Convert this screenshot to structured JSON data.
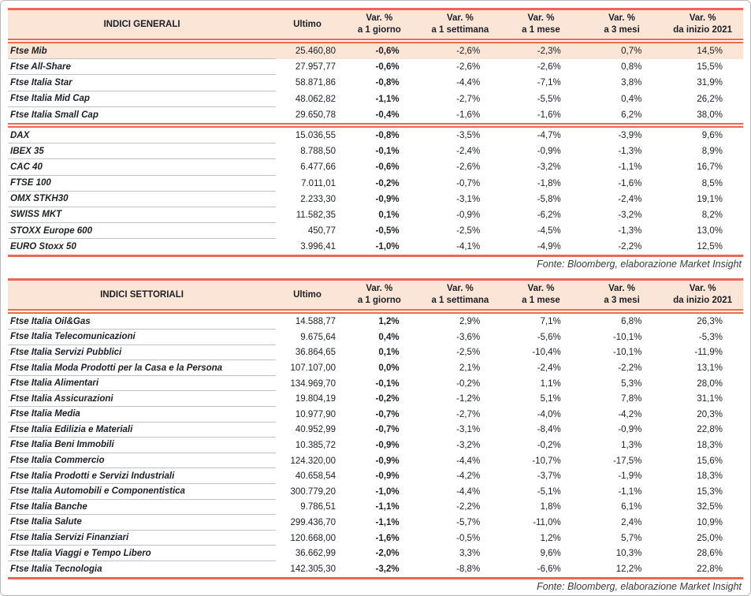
{
  "colors": {
    "salmon": "#ED6852",
    "peach": "#FBE5D6",
    "grayline": "#C3C3C3",
    "text": "#1D2026",
    "fonte": "#3B3B3B"
  },
  "tables": [
    {
      "title": "INDICI GENERALI",
      "header": {
        "ultimo": "Ultimo",
        "var_label": "Var. %",
        "periods": [
          "a 1 giorno",
          "a 1 settimana",
          "a 1 mese",
          "a 3 mesi",
          "da inizio 2021"
        ]
      },
      "fonte": "Fonte: Bloomberg, elaborazione Market Insight",
      "rows": [
        {
          "name": "Ftse Mib",
          "ultimo": "25.460,80",
          "vars": [
            "-0,6%",
            "-2,6%",
            "-2,3%",
            "0,7%",
            "14,5%"
          ],
          "highlight": true
        },
        {
          "name": "Ftse All-Share",
          "ultimo": "27.957,77",
          "vars": [
            "-0,6%",
            "-2,6%",
            "-2,6%",
            "0,8%",
            "15,5%"
          ]
        },
        {
          "name": "Ftse Italia Star",
          "ultimo": "58.871,86",
          "vars": [
            "-0,8%",
            "-4,4%",
            "-7,1%",
            "3,8%",
            "31,9%"
          ]
        },
        {
          "name": "Ftse Italia Mid Cap",
          "ultimo": "48.062,82",
          "vars": [
            "-1,1%",
            "-2,7%",
            "-5,5%",
            "0,4%",
            "26,2%"
          ]
        },
        {
          "name": "Ftse Italia Small Cap",
          "ultimo": "29.650,78",
          "vars": [
            "-0,4%",
            "-1,6%",
            "-1,6%",
            "6,2%",
            "38,0%"
          ],
          "divider_after": true
        },
        {
          "name": "DAX",
          "ultimo": "15.036,55",
          "vars": [
            "-0,8%",
            "-3,5%",
            "-4,7%",
            "-3,9%",
            "9,6%"
          ]
        },
        {
          "name": "IBEX 35",
          "ultimo": "8.788,50",
          "vars": [
            "-0,1%",
            "-2,4%",
            "-0,9%",
            "-1,3%",
            "8,9%"
          ]
        },
        {
          "name": "CAC 40",
          "ultimo": "6.477,66",
          "vars": [
            "-0,6%",
            "-2,6%",
            "-3,2%",
            "-1,1%",
            "16,7%"
          ]
        },
        {
          "name": "FTSE 100",
          "ultimo": "7.011,01",
          "vars": [
            "-0,2%",
            "-0,7%",
            "-1,8%",
            "-1,6%",
            "8,5%"
          ]
        },
        {
          "name": "OMX STKH30",
          "ultimo": "2.233,30",
          "vars": [
            "-0,9%",
            "-3,1%",
            "-5,8%",
            "-2,4%",
            "19,1%"
          ]
        },
        {
          "name": "SWISS MKT",
          "ultimo": "11.582,35",
          "vars": [
            "0,1%",
            "-0,9%",
            "-6,2%",
            "-3,2%",
            "8,2%"
          ]
        },
        {
          "name": "STOXX Europe 600",
          "ultimo": "450,77",
          "vars": [
            "-0,5%",
            "-2,5%",
            "-4,5%",
            "-1,3%",
            "13,0%"
          ]
        },
        {
          "name": "EURO Stoxx 50",
          "ultimo": "3.996,41",
          "vars": [
            "-1,0%",
            "-4,1%",
            "-4,9%",
            "-2,2%",
            "12,5%"
          ]
        }
      ]
    },
    {
      "title": "INDICI SETTORIALI",
      "header": {
        "ultimo": "Ultimo",
        "var_label": "Var. %",
        "periods": [
          "a 1 giorno",
          "a 1 settimana",
          "a 1 mese",
          "a 3 mesi",
          "da inizio 2021"
        ]
      },
      "fonte": "Fonte: Bloomberg, elaborazione Market Insight",
      "rows": [
        {
          "name": "Ftse Italia Oil&Gas",
          "ultimo": "14.588,77",
          "vars": [
            "1,2%",
            "2,9%",
            "7,1%",
            "6,8%",
            "26,3%"
          ]
        },
        {
          "name": "Ftse Italia Telecomunicazioni",
          "ultimo": "9.675,64",
          "vars": [
            "0,4%",
            "-3,6%",
            "-5,6%",
            "-10,1%",
            "-5,3%"
          ]
        },
        {
          "name": "Ftse Italia Servizi Pubblici",
          "ultimo": "36.864,65",
          "vars": [
            "0,1%",
            "-2,5%",
            "-10,4%",
            "-10,1%",
            "-11,9%"
          ]
        },
        {
          "name": "Ftse Italia Moda Prodotti per la Casa e la Persona",
          "ultimo": "107.107,00",
          "vars": [
            "0,0%",
            "2,1%",
            "-2,4%",
            "-2,2%",
            "13,1%"
          ]
        },
        {
          "name": "Ftse Italia Alimentari",
          "ultimo": "134.969,70",
          "vars": [
            "-0,1%",
            "-0,2%",
            "1,1%",
            "5,3%",
            "28,0%"
          ]
        },
        {
          "name": "Ftse Italia Assicurazioni",
          "ultimo": "19.804,19",
          "vars": [
            "-0,2%",
            "-1,2%",
            "5,1%",
            "7,8%",
            "31,1%"
          ]
        },
        {
          "name": "Ftse Italia Media",
          "ultimo": "10.977,90",
          "vars": [
            "-0,7%",
            "-2,7%",
            "-4,0%",
            "-4,2%",
            "20,3%"
          ]
        },
        {
          "name": "Ftse Italia Edilizia e Materiali",
          "ultimo": "40.952,99",
          "vars": [
            "-0,7%",
            "-3,1%",
            "-8,4%",
            "-0,9%",
            "22,8%"
          ]
        },
        {
          "name": "Ftse Italia Beni Immobili",
          "ultimo": "10.385,72",
          "vars": [
            "-0,9%",
            "-3,2%",
            "-0,2%",
            "1,3%",
            "18,3%"
          ]
        },
        {
          "name": "Ftse Italia Commercio",
          "ultimo": "124.320,00",
          "vars": [
            "-0,9%",
            "-4,4%",
            "-10,7%",
            "-17,5%",
            "15,6%"
          ]
        },
        {
          "name": "Ftse Italia Prodotti e Servizi Industriali",
          "ultimo": "40.658,54",
          "vars": [
            "-0,9%",
            "-4,2%",
            "-3,7%",
            "-1,9%",
            "18,3%"
          ]
        },
        {
          "name": "Ftse Italia Automobili e Componentistica",
          "ultimo": "300.779,20",
          "vars": [
            "-1,0%",
            "-4,4%",
            "-5,1%",
            "-1,1%",
            "15,3%"
          ]
        },
        {
          "name": "Ftse Italia Banche",
          "ultimo": "9.786,51",
          "vars": [
            "-1,1%",
            "-2,2%",
            "1,8%",
            "6,1%",
            "32,5%"
          ]
        },
        {
          "name": "Ftse Italia Salute",
          "ultimo": "299.436,70",
          "vars": [
            "-1,1%",
            "-5,7%",
            "-11,0%",
            "2,4%",
            "10,9%"
          ]
        },
        {
          "name": "Ftse Italia Servizi Finanziari",
          "ultimo": "120.668,00",
          "vars": [
            "-1,6%",
            "-0,5%",
            "1,2%",
            "5,7%",
            "25,0%"
          ]
        },
        {
          "name": "Ftse Italia Viaggi e Tempo Libero",
          "ultimo": "36.662,99",
          "vars": [
            "-2,0%",
            "3,3%",
            "9,6%",
            "10,3%",
            "28,6%"
          ]
        },
        {
          "name": "Ftse Italia Tecnologia",
          "ultimo": "142.305,30",
          "vars": [
            "-3,2%",
            "-8,8%",
            "-6,6%",
            "12,2%",
            "22,8%"
          ]
        }
      ]
    }
  ]
}
